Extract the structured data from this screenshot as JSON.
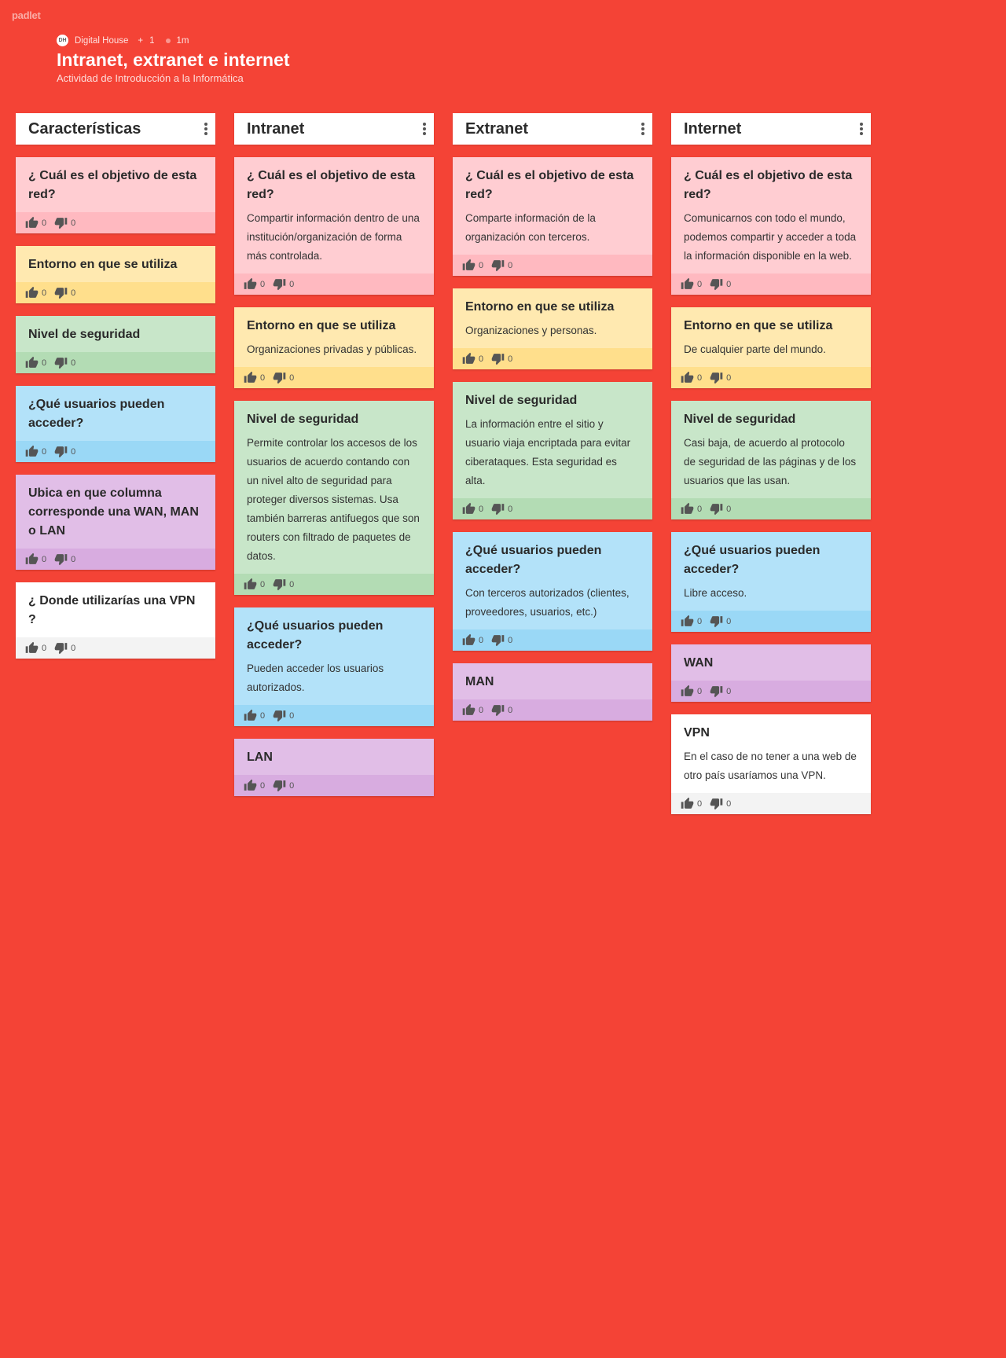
{
  "app": {
    "logo": "padlet"
  },
  "header": {
    "author": "Digital House",
    "avatar_text": "DH",
    "plus_label": "+",
    "contributors": "1",
    "time_ago": "1m",
    "title": "Intranet, extranet e internet",
    "subtitle": "Actividad de Introducción a la Informática"
  },
  "colors": {
    "background": "#f44336",
    "pink": "#ffcdd2",
    "yellow": "#ffe9b0",
    "green": "#c8e6c9",
    "blue": "#b3e2f9",
    "purple": "#e1bee7",
    "white": "#ffffff"
  },
  "icons": {
    "menu": "kebab-icon",
    "like": "thumbs-up-icon",
    "dislike": "thumbs-down-icon"
  },
  "columns": [
    {
      "title": "Características",
      "cards": [
        {
          "color": "pink",
          "title": "¿ Cuál es el objetivo de esta red?",
          "text": "",
          "likes": "0",
          "dislikes": "0"
        },
        {
          "color": "yellow",
          "title": "Entorno en que se utiliza",
          "text": "",
          "likes": "0",
          "dislikes": "0"
        },
        {
          "color": "green",
          "title": "Nivel de seguridad",
          "text": "",
          "likes": "0",
          "dislikes": "0"
        },
        {
          "color": "blue",
          "title": "¿Qué usuarios pueden acceder?",
          "text": "",
          "likes": "0",
          "dislikes": "0"
        },
        {
          "color": "purple",
          "title": "Ubica en que columna corresponde una WAN, MAN o LAN",
          "text": "",
          "likes": "0",
          "dislikes": "0"
        },
        {
          "color": "white",
          "title": "¿ Donde utilizarías una VPN ?",
          "text": "",
          "likes": "0",
          "dislikes": "0"
        }
      ]
    },
    {
      "title": "Intranet",
      "cards": [
        {
          "color": "pink",
          "title": "¿ Cuál es el objetivo de esta red?",
          "text": "Compartir información dentro de una institución/organización de forma más controlada.",
          "likes": "0",
          "dislikes": "0"
        },
        {
          "color": "yellow",
          "title": "Entorno en que se utiliza",
          "text": "Organizaciones privadas y públicas.",
          "likes": "0",
          "dislikes": "0"
        },
        {
          "color": "green",
          "title": "Nivel de seguridad",
          "text": "Permite controlar los accesos de los usuarios de acuerdo contando con un nivel alto de seguridad para proteger diversos sistemas. Usa también barreras antifuegos que son routers con filtrado de paquetes de datos.",
          "likes": "0",
          "dislikes": "0"
        },
        {
          "color": "blue",
          "title": "¿Qué usuarios pueden acceder?",
          "text": "Pueden acceder los usuarios autorizados.",
          "likes": "0",
          "dislikes": "0"
        },
        {
          "color": "purple",
          "title": "LAN",
          "text": "",
          "likes": "0",
          "dislikes": "0"
        }
      ]
    },
    {
      "title": "Extranet",
      "cards": [
        {
          "color": "pink",
          "title": "¿ Cuál es el objetivo de esta red?",
          "text": "Comparte información de la organización con terceros.",
          "likes": "0",
          "dislikes": "0"
        },
        {
          "color": "yellow",
          "title": "Entorno en que se utiliza",
          "text": "Organizaciones y personas.",
          "likes": "0",
          "dislikes": "0"
        },
        {
          "color": "green",
          "title": "Nivel de seguridad",
          "text": "La información entre el sitio y usuario viaja encriptada para evitar ciberataques. Esta seguridad es alta.",
          "likes": "0",
          "dislikes": "0"
        },
        {
          "color": "blue",
          "title": "¿Qué usuarios pueden acceder?",
          "text": "Con terceros autorizados (clientes, proveedores, usuarios, etc.)",
          "likes": "0",
          "dislikes": "0"
        },
        {
          "color": "purple",
          "title": "MAN",
          "text": "",
          "likes": "0",
          "dislikes": "0"
        }
      ]
    },
    {
      "title": "Internet",
      "cards": [
        {
          "color": "pink",
          "title": "¿ Cuál es el objetivo de esta red?",
          "text": "Comunicarnos con todo el mundo, podemos compartir y acceder a toda la información disponible en la web.",
          "likes": "0",
          "dislikes": "0"
        },
        {
          "color": "yellow",
          "title": "Entorno en que se utiliza",
          "text": "De cualquier parte del mundo.",
          "likes": "0",
          "dislikes": "0"
        },
        {
          "color": "green",
          "title": "Nivel de seguridad",
          "text": "Casi baja, de acuerdo al protocolo de seguridad de las páginas y de los usuarios que las usan.",
          "likes": "0",
          "dislikes": "0"
        },
        {
          "color": "blue",
          "title": "¿Qué usuarios pueden acceder?",
          "text": "Libre acceso.",
          "likes": "0",
          "dislikes": "0"
        },
        {
          "color": "purple",
          "title": "WAN",
          "text": "",
          "likes": "0",
          "dislikes": "0"
        },
        {
          "color": "white",
          "title": "VPN",
          "text": "En el caso de no tener a una web de otro país usaríamos una VPN.",
          "likes": "0",
          "dislikes": "0"
        }
      ]
    }
  ]
}
